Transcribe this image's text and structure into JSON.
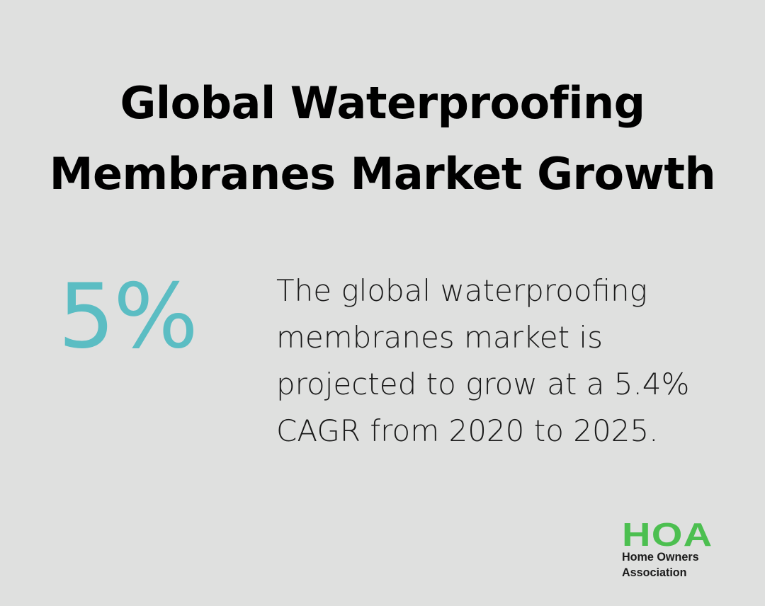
{
  "title": {
    "line1": "Global Waterproofing",
    "line2": "Membranes Market Growth"
  },
  "stat": {
    "value": "5%",
    "description_lines": [
      "The global waterproofing",
      "membranes market is",
      "projected to grow at a 5.4%",
      "CAGR from 2020 to 2025."
    ]
  },
  "logo": {
    "mark": "HOA",
    "line1": "Home Owners",
    "line2": "Association"
  },
  "colors": {
    "background": "#dfe0df",
    "accent": "#5bbdc3",
    "logo_green": "#4cbf50",
    "text": "#000000"
  }
}
